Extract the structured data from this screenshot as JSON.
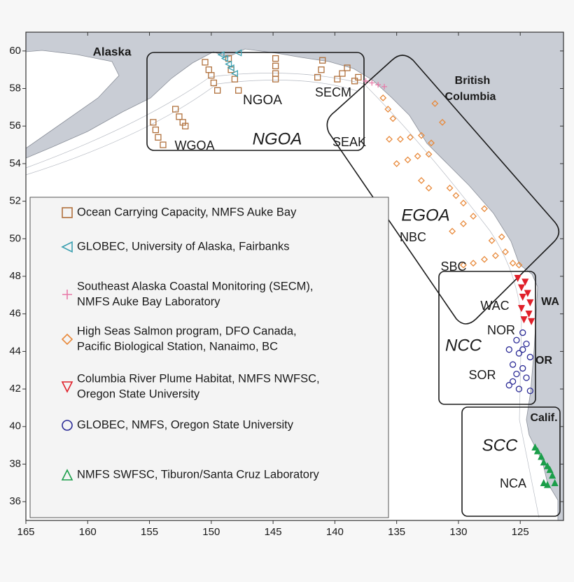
{
  "chart_data": {
    "type": "map",
    "xlim": [
      165,
      121.5
    ],
    "ylim": [
      35,
      61
    ],
    "xticks": [
      165,
      160,
      155,
      150,
      145,
      140,
      135,
      130,
      125
    ],
    "yticks": [
      36,
      38,
      40,
      42,
      44,
      46,
      48,
      50,
      52,
      54,
      56,
      58,
      60
    ],
    "labels": [
      "Alaska",
      "British",
      "Columbia",
      "NGOA",
      "NGOA",
      "WGOA",
      "SECM",
      "SEAK",
      "EGOA",
      "NBC",
      "SBC",
      "WAC",
      "NOR",
      "NCC",
      "SOR",
      "WA",
      "OR",
      "Calif.",
      "SCC",
      "NCA"
    ],
    "series": [
      {
        "name": [
          "Ocean Carrying Capacity, NMFS Auke Bay"
        ],
        "color": "#b0703c",
        "marker": "square",
        "x": [
          154.7,
          154.5,
          154.3,
          153.9,
          152.9,
          152.6,
          152.3,
          152.1,
          150.5,
          150.2,
          150.0,
          149.8,
          149.5,
          148.6,
          148.4,
          148.1,
          147.8,
          144.8,
          144.8,
          144.8,
          144.8,
          141.0,
          141.1,
          141.4,
          139.0,
          139.4,
          139.8,
          138.1,
          138.4
        ],
        "y": [
          56.2,
          55.8,
          55.4,
          55.0,
          56.9,
          56.5,
          56.2,
          56.0,
          59.4,
          59.0,
          58.7,
          58.3,
          57.9,
          59.6,
          59.0,
          58.5,
          57.9,
          59.6,
          59.2,
          58.8,
          58.5,
          59.5,
          59.0,
          58.6,
          59.1,
          58.8,
          58.5,
          58.6,
          58.4
        ]
      },
      {
        "name": [
          "GLOBEC, University of Alaska, Fairbanks"
        ],
        "color": "#3a9fb0",
        "marker": "triangle-left",
        "x": [
          149.2,
          148.9,
          148.6,
          148.4,
          148.1,
          147.8
        ],
        "y": [
          59.8,
          59.6,
          59.3,
          59.1,
          58.8,
          59.9
        ]
      },
      {
        "name": [
          "Southeast Alaska Coastal Monitoring (SECM),",
          "NMFS Auke Bay Laboratory"
        ],
        "color": "#e87aa8",
        "marker": "plus",
        "x": [
          137.5,
          137.0,
          136.5,
          136.0
        ],
        "y": [
          58.4,
          58.3,
          58.2,
          58.1
        ]
      },
      {
        "name": [
          "High Seas Salmon program, DFO Canada,",
          "Pacific Biological Station, Nanaimo, BC"
        ],
        "color": "#e8893a",
        "marker": "diamond",
        "x": [
          136.1,
          135.7,
          135.3,
          135.6,
          134.7,
          133.9,
          133.0,
          135.0,
          134.1,
          133.3,
          132.4,
          133.0,
          132.4,
          130.7,
          130.2,
          129.6,
          130.5,
          129.6,
          128.8,
          127.9,
          129.6,
          128.8,
          127.9,
          127.0,
          126.2,
          127.3,
          126.5,
          125.6,
          125.1,
          131.9,
          131.3,
          132.2
        ],
        "y": [
          57.5,
          56.9,
          56.4,
          55.3,
          55.3,
          55.4,
          55.5,
          54.0,
          54.2,
          54.4,
          54.5,
          53.1,
          52.7,
          52.7,
          52.3,
          51.9,
          50.4,
          50.8,
          51.2,
          51.6,
          48.6,
          48.7,
          48.9,
          49.1,
          49.3,
          49.9,
          50.1,
          48.7,
          48.6,
          57.2,
          56.2,
          55.1
        ]
      },
      {
        "name": [
          "Columbia River Plume Habitat, NMFS NWFSC,",
          "Oregon State University"
        ],
        "color": "#e0202a",
        "marker": "triangle-down",
        "x": [
          125.2,
          124.6,
          124.9,
          124.4,
          124.8,
          124.2,
          124.9,
          124.3,
          124.7,
          124.1
        ],
        "y": [
          47.9,
          47.7,
          47.4,
          47.1,
          46.9,
          46.6,
          46.3,
          46.0,
          45.7,
          45.6
        ]
      },
      {
        "name": [
          "GLOBEC, NMFS, Oregon State University"
        ],
        "color": "#2b2b96",
        "marker": "circle",
        "x": [
          124.8,
          125.3,
          124.5,
          125.9,
          125.1,
          124.2,
          125.6,
          124.8,
          125.3,
          124.5,
          125.9,
          125.1,
          124.2,
          125.6,
          124.8
        ],
        "y": [
          45.0,
          44.6,
          44.4,
          44.1,
          43.9,
          43.7,
          43.3,
          43.1,
          42.8,
          42.6,
          42.2,
          42.0,
          41.9,
          42.4,
          44.1
        ]
      },
      {
        "name": [
          "NMFS SWFSC, Tiburon/Santa Cruz Laboratory"
        ],
        "color": "#1b9e4a",
        "marker": "triangle-up",
        "x": [
          123.8,
          123.6,
          123.3,
          123.1,
          122.8,
          122.6,
          122.4,
          122.2,
          123.1,
          122.8
        ],
        "y": [
          38.9,
          38.7,
          38.4,
          38.1,
          37.9,
          37.7,
          37.4,
          37.0,
          37.0,
          36.9
        ]
      }
    ]
  }
}
